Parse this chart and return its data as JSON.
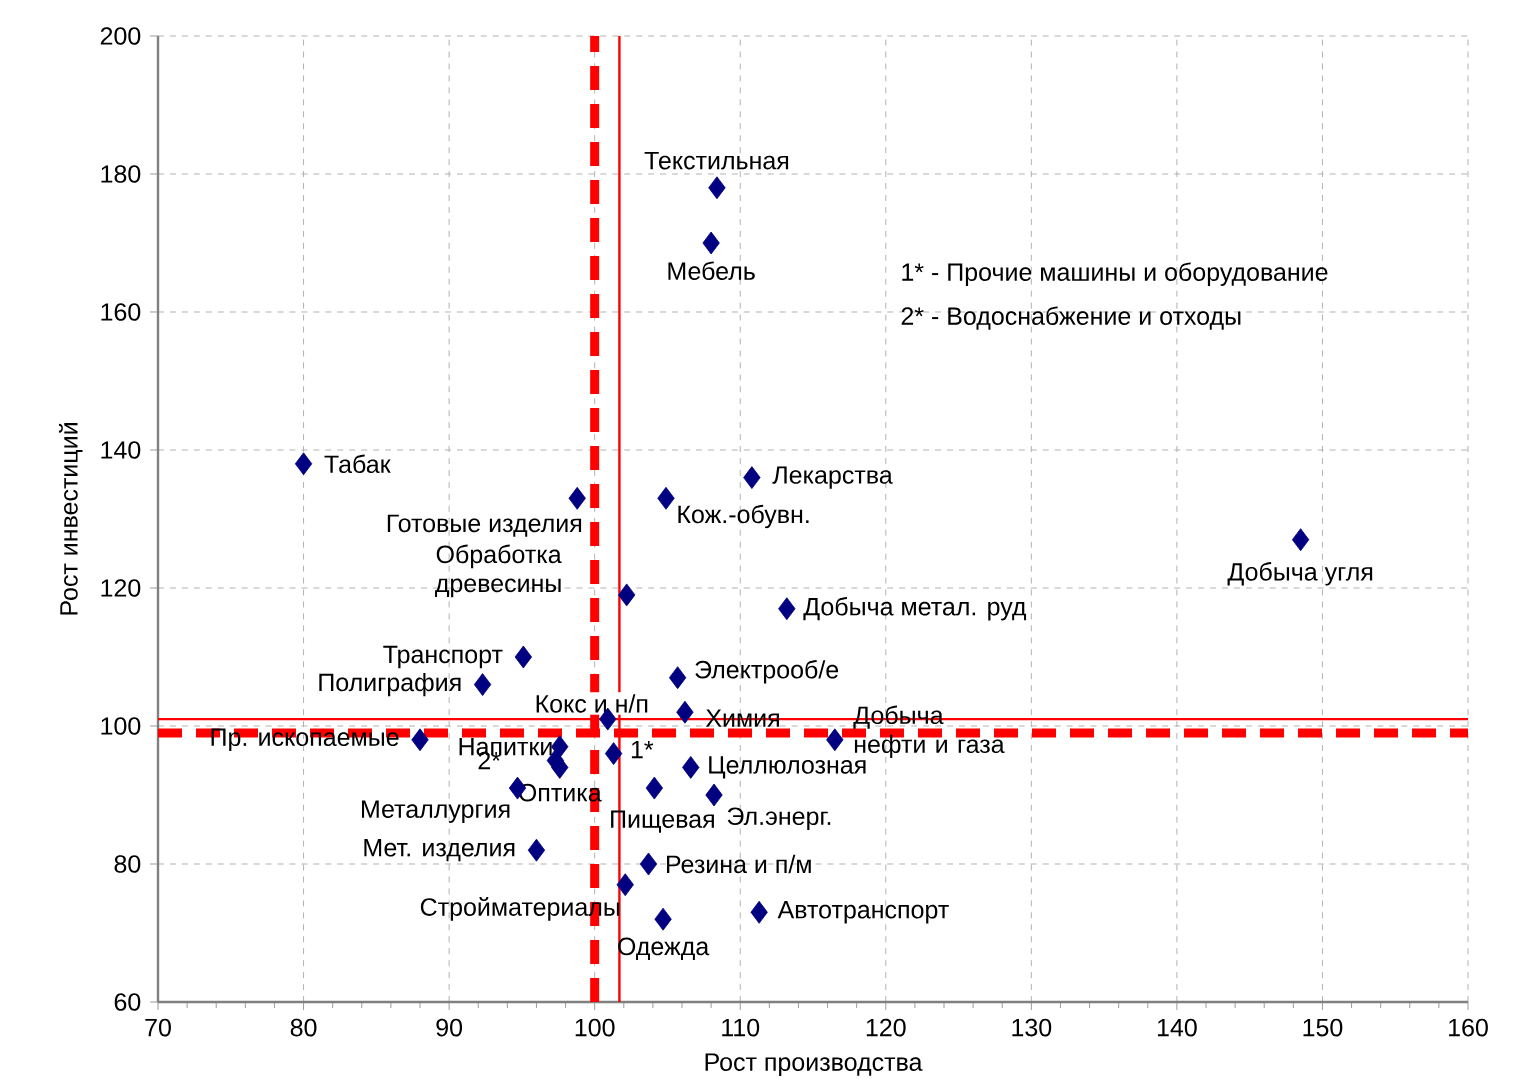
{
  "chart_data": {
    "type": "scatter",
    "xlabel": "Рост производства",
    "ylabel": "Рост инвестиций",
    "xlim": [
      70,
      160
    ],
    "ylim": [
      60,
      200
    ],
    "xticks": [
      70,
      80,
      90,
      100,
      110,
      120,
      130,
      140,
      150,
      160
    ],
    "yticks": [
      60,
      80,
      100,
      120,
      140,
      160,
      180,
      200
    ],
    "grid": true,
    "marker": "diamond",
    "series": [
      {
        "color": "#000080",
        "x": [
          108.4,
          108.0,
          80.0,
          98.8,
          104.9,
          110.8,
          102.2,
          113.2,
          148.5,
          95.1,
          92.3,
          105.7,
          106.2,
          100.9,
          116.5,
          88.0,
          97.6,
          97.3,
          97.6,
          101.3,
          94.7,
          106.6,
          104.1,
          108.2,
          96.0,
          103.7,
          102.1,
          104.7,
          111.3
        ],
        "values": [
          178,
          170,
          138,
          133,
          133,
          136,
          119,
          117,
          127,
          110,
          106,
          107,
          102,
          101,
          98,
          98,
          97,
          95,
          94,
          96,
          91,
          94,
          91,
          90,
          82,
          80,
          77,
          72,
          73
        ]
      }
    ],
    "ref_lines": [
      {
        "axis": "x",
        "value": 100,
        "color": "#ff0000",
        "line_style": "dashed"
      },
      {
        "axis": "x",
        "value": 101.7,
        "color": "#ff0000",
        "line_style": "solid"
      },
      {
        "axis": "y",
        "value": 101,
        "color": "#ff0000",
        "line_style": "solid"
      },
      {
        "axis": "y",
        "value": 99,
        "color": "#ff0000",
        "line_style": "dashed"
      }
    ],
    "annotations": [
      {
        "text": "Текстильная",
        "x": 108.4,
        "y": 178
      },
      {
        "text": "Мебель",
        "x": 108.0,
        "y": 170
      },
      {
        "text": "Табак",
        "x": 80.0,
        "y": 138
      },
      {
        "text": "Готовые изделия",
        "x": 98.8,
        "y": 133
      },
      {
        "text": "Кож.-обувн.",
        "x": 104.9,
        "y": 133
      },
      {
        "text": "Лекарства",
        "x": 110.8,
        "y": 136
      },
      {
        "text": "Обработка древесины",
        "x": 102.2,
        "y": 119
      },
      {
        "text": "Добыча метал. руд",
        "x": 113.2,
        "y": 117
      },
      {
        "text": "Добыча угля",
        "x": 148.5,
        "y": 127
      },
      {
        "text": "Транспорт",
        "x": 95.1,
        "y": 110
      },
      {
        "text": "Полиграфия",
        "x": 92.3,
        "y": 106
      },
      {
        "text": "Электрооб/е",
        "x": 105.7,
        "y": 107
      },
      {
        "text": "Химия",
        "x": 106.2,
        "y": 102
      },
      {
        "text": "Кокс и н/п",
        "x": 100.9,
        "y": 101
      },
      {
        "text": "Добыча нефти и газа",
        "x": 116.5,
        "y": 98
      },
      {
        "text": "Пр. ископаемые",
        "x": 88.0,
        "y": 98
      },
      {
        "text": "Напитки",
        "x": 97.6,
        "y": 97
      },
      {
        "text": "2*",
        "x": 97.3,
        "y": 95
      },
      {
        "text": "Оптика",
        "x": 97.6,
        "y": 94
      },
      {
        "text": "1*",
        "x": 101.3,
        "y": 96
      },
      {
        "text": "Металлургия",
        "x": 94.7,
        "y": 91
      },
      {
        "text": "Целлюлозная",
        "x": 106.6,
        "y": 94
      },
      {
        "text": "Пищевая",
        "x": 104.1,
        "y": 91
      },
      {
        "text": "Эл.энерг.",
        "x": 108.2,
        "y": 90
      },
      {
        "text": "Мет. изделия",
        "x": 96.0,
        "y": 82
      },
      {
        "text": "Резина и п/м",
        "x": 103.7,
        "y": 80
      },
      {
        "text": "Стройматериалы",
        "x": 102.1,
        "y": 77
      },
      {
        "text": "Одежда",
        "x": 104.7,
        "y": 72
      },
      {
        "text": "Автотранспорт",
        "x": 111.3,
        "y": 73
      },
      "1* - Прочие машины и оборудование",
      "2* - Водоснабжение и отходы"
    ]
  }
}
